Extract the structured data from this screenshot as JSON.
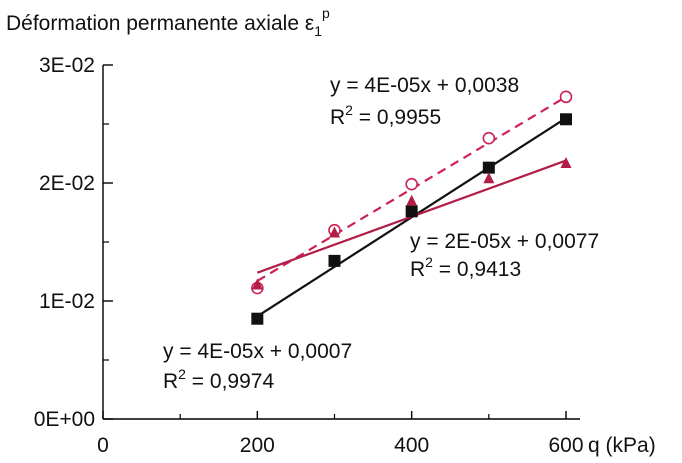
{
  "chart_data": {
    "type": "scatter",
    "title": "",
    "ylabel": {
      "prefix": "Déformation permanente axiale ",
      "symbol": "ε",
      "sub": "1",
      "sup": "p"
    },
    "xlabel": "",
    "x_unit_label": "q (kPa)",
    "xlim": [
      0,
      600
    ],
    "ylim": [
      0,
      0.03
    ],
    "x_ticks": [
      {
        "value": 0,
        "label": "0"
      },
      {
        "value": 200,
        "label": "200"
      },
      {
        "value": 400,
        "label": "400"
      },
      {
        "value": 600,
        "label": "600"
      }
    ],
    "x_minor_ticks": [
      100,
      300,
      500
    ],
    "y_ticks": [
      {
        "value": 0,
        "label": "0E+00"
      },
      {
        "value": 0.01,
        "label": "1E-02"
      },
      {
        "value": 0.02,
        "label": "2E-02"
      },
      {
        "value": 0.03,
        "label": "3E-02"
      }
    ],
    "y_minor_ticks": [
      0.005,
      0.015,
      0.025
    ],
    "grid": false,
    "legend": "none",
    "series": [
      {
        "marker": "open-circle",
        "color": "#cc2255",
        "line_style": "dashed",
        "points": [
          [
            200,
            0.0111
          ],
          [
            300,
            0.016
          ],
          [
            400,
            0.0199
          ],
          [
            500,
            0.0238
          ],
          [
            600,
            0.0273
          ]
        ],
        "fit_line": {
          "x": [
            200,
            600
          ],
          "y": [
            0.0117,
            0.0273
          ]
        },
        "equation": "y = 4E-05x + 0,0038",
        "r2_value": "0,9955"
      },
      {
        "marker": "filled-square",
        "color": "#111111",
        "line_style": "solid",
        "points": [
          [
            200,
            0.0085
          ],
          [
            300,
            0.0134
          ],
          [
            400,
            0.0176
          ],
          [
            500,
            0.0213
          ],
          [
            600,
            0.0254
          ]
        ],
        "fit_line": {
          "x": [
            200,
            600
          ],
          "y": [
            0.0087,
            0.0255
          ]
        },
        "equation": "y = 4E-05x + 0,0007",
        "r2_value": "0,9974"
      },
      {
        "marker": "filled-triangle",
        "color": "#b31e47",
        "line_style": "solid",
        "points": [
          [
            200,
            0.0114
          ],
          [
            300,
            0.0158
          ],
          [
            400,
            0.0185
          ],
          [
            500,
            0.0204
          ],
          [
            600,
            0.0217
          ]
        ],
        "fit_line": {
          "x": [
            200,
            600
          ],
          "y": [
            0.0124,
            0.0219
          ]
        },
        "equation": "y = 2E-05x + 0,0077",
        "r2_value": "0,9413"
      }
    ],
    "r2_symbol": {
      "base": "R",
      "sup": "2",
      "eq": " = "
    }
  },
  "colors": {
    "axis": "#000000",
    "text": "#111111"
  }
}
